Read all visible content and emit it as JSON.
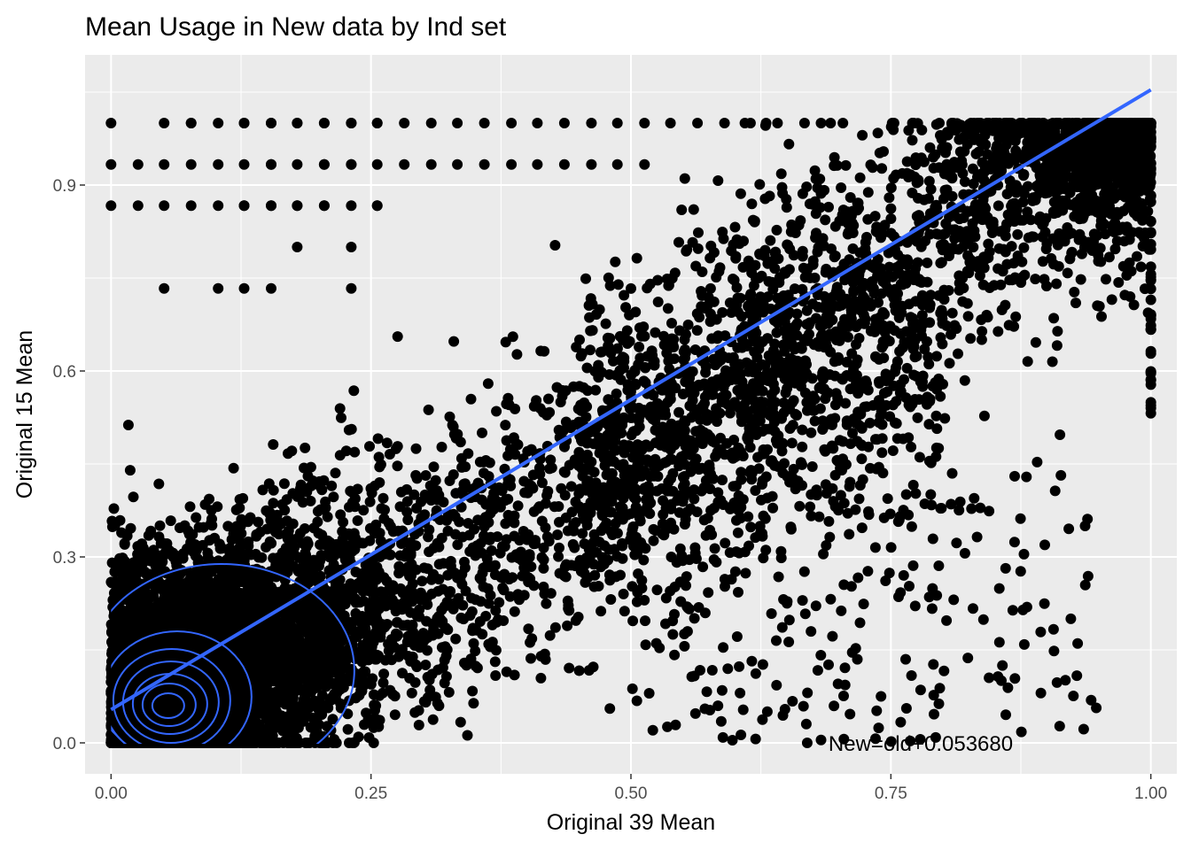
{
  "chart_data": {
    "type": "scatter",
    "title": "Mean Usage in New data by Ind set",
    "xlabel": "Original 39 Mean",
    "ylabel": "Original 15 Mean",
    "xlim": [
      -0.025,
      1.025
    ],
    "ylim": [
      -0.05,
      1.11
    ],
    "x_ticks": [
      0.0,
      0.25,
      0.5,
      0.75,
      1.0
    ],
    "x_tick_labels": [
      "0.00",
      "0.25",
      "0.50",
      "0.75",
      "1.00"
    ],
    "y_ticks": [
      0.0,
      0.3,
      0.6,
      0.9
    ],
    "y_tick_labels": [
      "0.0",
      "0.3",
      "0.6",
      "0.9"
    ],
    "grid": true,
    "background": "#ebebeb",
    "point_color": "#000000",
    "line_color": "#3366ff",
    "fit_line": {
      "intercept": 0.05368,
      "slope": 1.0,
      "x_range": [
        0.0,
        1.0
      ]
    },
    "density_center": [
      0.055,
      0.06
    ],
    "density_levels": 8,
    "annotation": {
      "text": "New=old+0.053680",
      "x": 0.69,
      "y": 0.0
    },
    "series": [
      {
        "points_described": "dense scatter of mean usage values; heavily concentrated near origin, spreading toward (1,1); discrete rows at y = 0.733, 0.8, 0.867, 0.933, 1.0 on the left"
      }
    ]
  }
}
